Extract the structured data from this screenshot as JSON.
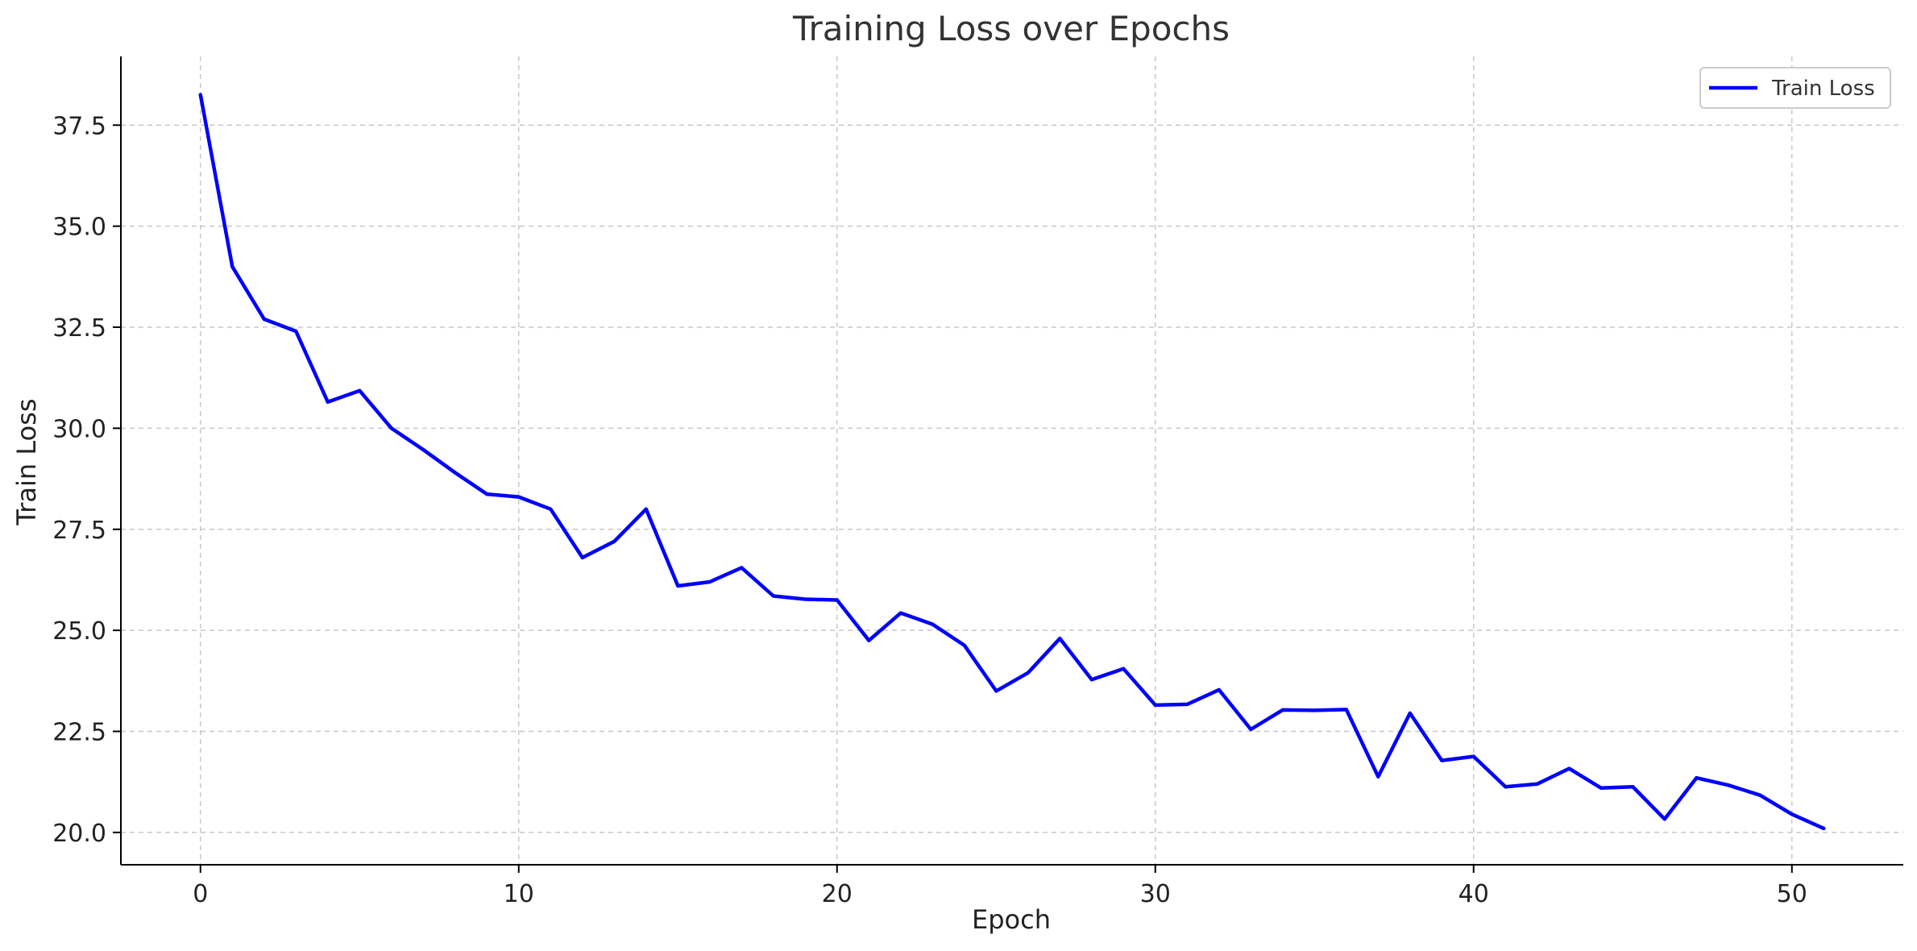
{
  "chart_data": {
    "type": "line",
    "title": "Training Loss over Epochs",
    "xlabel": "Epoch",
    "ylabel": "Train Loss",
    "xlim": [
      -2.5,
      53.5
    ],
    "ylim": [
      19.2,
      39.2
    ],
    "xticks": [
      0,
      10,
      20,
      30,
      40,
      50
    ],
    "yticks": [
      20.0,
      22.5,
      25.0,
      27.5,
      30.0,
      32.5,
      35.0,
      37.5
    ],
    "grid": true,
    "legend_position": "top-right",
    "series": [
      {
        "name": "Train Loss",
        "color": "#0000ff",
        "x": [
          0,
          1,
          2,
          3,
          4,
          5,
          6,
          7,
          8,
          9,
          10,
          11,
          12,
          13,
          14,
          15,
          16,
          17,
          18,
          19,
          20,
          21,
          22,
          23,
          24,
          25,
          26,
          27,
          28,
          29,
          30,
          31,
          32,
          33,
          34,
          35,
          36,
          37,
          38,
          39,
          40,
          41,
          42,
          43,
          44,
          45,
          46,
          47,
          48,
          49,
          50,
          51
        ],
        "values": [
          38.25,
          34.0,
          32.7,
          32.4,
          30.65,
          30.93,
          30.0,
          29.47,
          28.9,
          28.37,
          28.3,
          28.0,
          26.8,
          27.2,
          28.0,
          26.1,
          26.2,
          26.55,
          25.85,
          25.77,
          25.75,
          24.75,
          25.43,
          25.15,
          24.63,
          23.5,
          23.95,
          24.8,
          23.78,
          24.05,
          23.15,
          23.17,
          23.53,
          22.55,
          23.03,
          23.02,
          23.04,
          21.38,
          22.95,
          21.78,
          21.88,
          21.13,
          21.2,
          21.58,
          21.1,
          21.13,
          20.33,
          21.35,
          21.17,
          20.92,
          20.45,
          20.1
        ]
      }
    ]
  }
}
